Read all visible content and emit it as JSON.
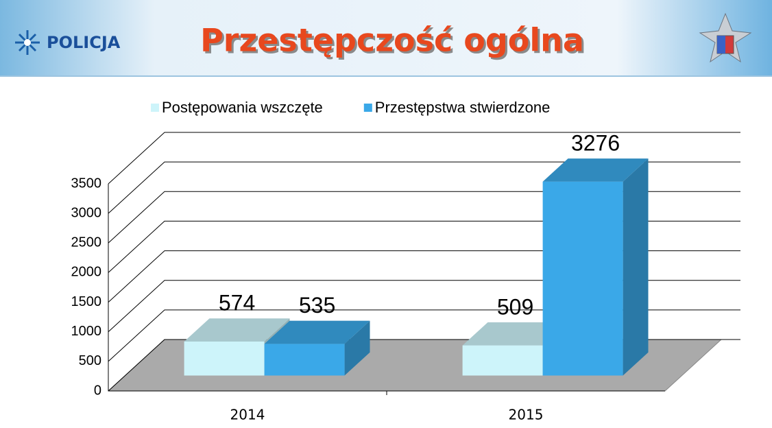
{
  "header": {
    "logo_text": "POLICJA",
    "title": "Przestępczość ogólna"
  },
  "chart_data": {
    "type": "bar3d",
    "categories": [
      "2014",
      "2015"
    ],
    "series": [
      {
        "name": "Postępowania wszczęte",
        "color": "#cdf4fa",
        "values": [
          574,
          509
        ]
      },
      {
        "name": "Przestępstwa stwierdzone",
        "color": "#3aa8e8",
        "values": [
          535,
          3276
        ]
      }
    ],
    "ylim": [
      0,
      3500
    ],
    "yticks": [
      0,
      500,
      1000,
      1500,
      2000,
      2500,
      3000,
      3500
    ],
    "grid": true,
    "legend": "top"
  }
}
